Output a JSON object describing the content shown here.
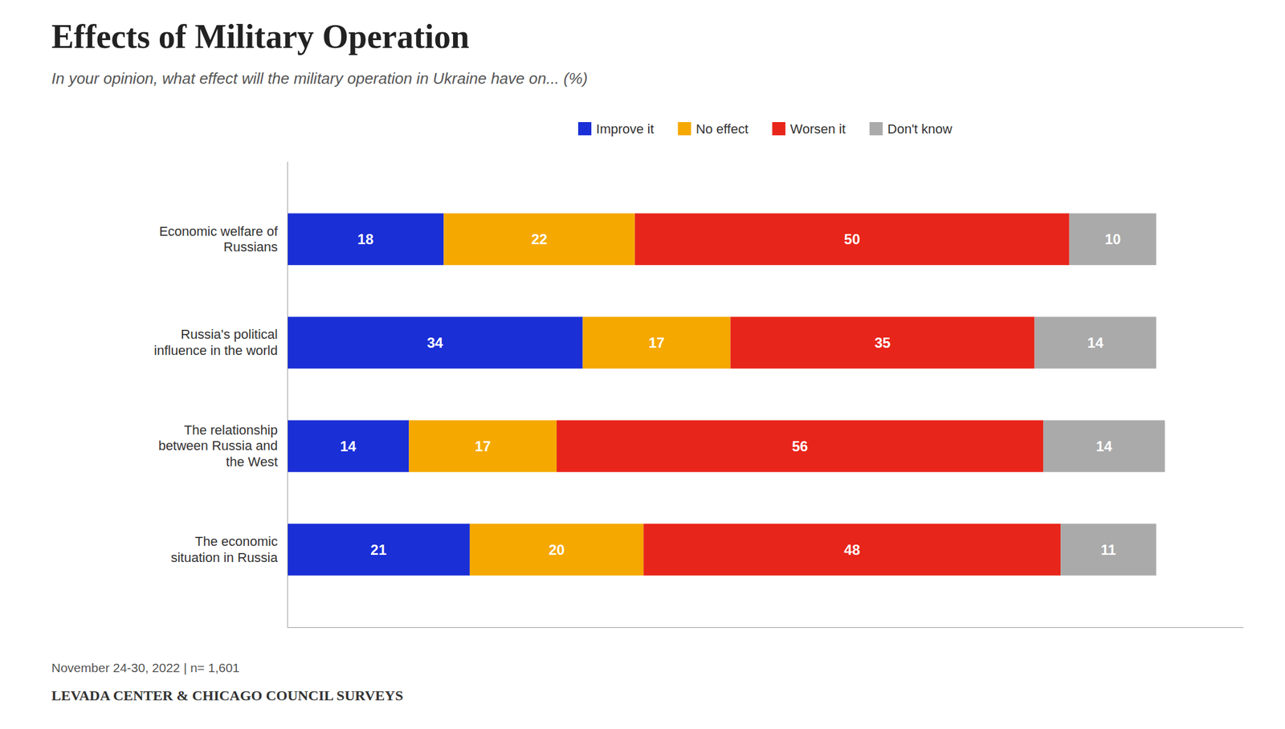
{
  "chart_data": {
    "type": "bar",
    "orientation": "horizontal",
    "stacked": true,
    "data_labels": true,
    "tick_labels": "y",
    "legend": "top",
    "title": "Effects of Military Operation",
    "subtitle": "In your opinion, what effect will the military operation in Ukraine have on... (%)",
    "footnote": "November 24-30, 2022 | n= 1,601",
    "source": "LEVADA CENTER & CHICAGO COUNCIL SURVEYS",
    "categories": [
      "Economic welfare of\nRussians",
      "Russia's political\ninfluence in the world",
      "The relationship\nbetween Russia and\nthe West",
      "The economic\nsituation in Russia"
    ],
    "series": [
      {
        "name": "Improve it",
        "color": "#1a2fd6",
        "values": [
          18,
          34,
          14,
          21
        ]
      },
      {
        "name": "No effect",
        "color": "#f5a800",
        "values": [
          22,
          17,
          17,
          20
        ]
      },
      {
        "name": "Worsen it",
        "color": "#e8251a",
        "values": [
          50,
          35,
          56,
          48
        ]
      },
      {
        "name": "Don't know",
        "color": "#aaaaaa",
        "values": [
          10,
          14,
          14,
          11
        ]
      }
    ],
    "xlim": [
      0,
      110
    ]
  }
}
